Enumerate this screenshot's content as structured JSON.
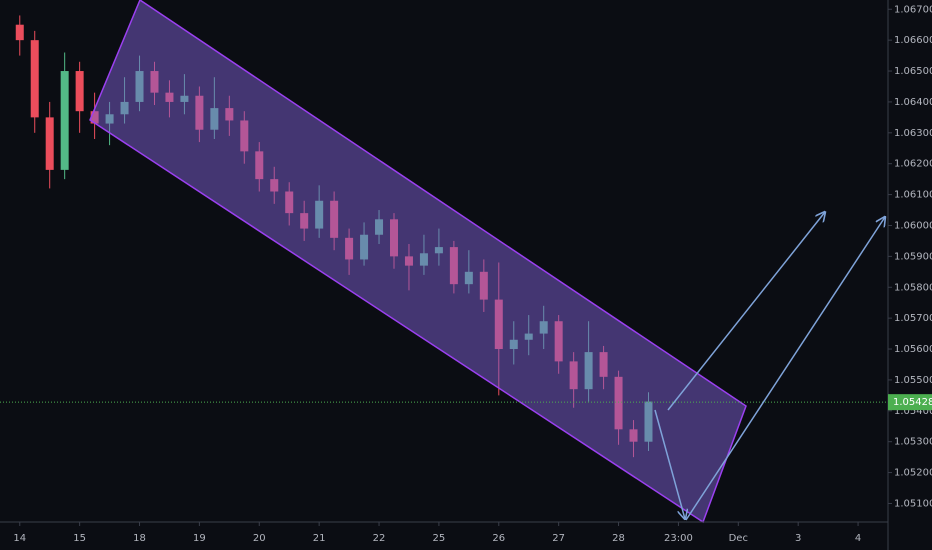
{
  "chart_data": {
    "type": "candlestick",
    "x": [
      0,
      0.25,
      0.5,
      0.75,
      1,
      1.25,
      1.5,
      1.75,
      2,
      2.25,
      2.5,
      2.75,
      3,
      3.25,
      3.5,
      3.75,
      4,
      4.25,
      4.5,
      4.75,
      5,
      5.25,
      5.5,
      5.75,
      6,
      6.25,
      6.5,
      6.75,
      7,
      7.25,
      7.5,
      7.75,
      8,
      8.25,
      8.5,
      8.75,
      9,
      9.25,
      9.5,
      9.75,
      10,
      10.25,
      10.5
    ],
    "open": [
      1.0665,
      1.066,
      1.0635,
      1.0618,
      1.065,
      1.0637,
      1.0633,
      1.0636,
      1.064,
      1.065,
      1.0643,
      1.064,
      1.0642,
      1.0631,
      1.0638,
      1.0634,
      1.0624,
      1.0615,
      1.0611,
      1.0604,
      1.0599,
      1.0608,
      1.0596,
      1.0589,
      1.0597,
      1.0602,
      1.059,
      1.0587,
      1.0591,
      1.0593,
      1.0581,
      1.0585,
      1.0576,
      1.056,
      1.0563,
      1.0565,
      1.0569,
      1.0556,
      1.0547,
      1.0559,
      1.0551,
      1.0534,
      1.053
    ],
    "high": [
      1.0668,
      1.0663,
      1.064,
      1.0656,
      1.0653,
      1.0643,
      1.064,
      1.0648,
      1.0655,
      1.0653,
      1.0647,
      1.0649,
      1.0645,
      1.0648,
      1.0642,
      1.0637,
      1.0627,
      1.0619,
      1.0614,
      1.0608,
      1.0613,
      1.0611,
      1.0599,
      1.0601,
      1.0605,
      1.0604,
      1.0594,
      1.0597,
      1.0599,
      1.0595,
      1.0592,
      1.0589,
      1.0588,
      1.0569,
      1.0571,
      1.0574,
      1.0571,
      1.0559,
      1.0569,
      1.0561,
      1.0553,
      1.0537,
      1.0546
    ],
    "low": [
      1.0655,
      1.063,
      1.0612,
      1.0615,
      1.063,
      1.0628,
      1.0626,
      1.0633,
      1.0637,
      1.0639,
      1.0635,
      1.0636,
      1.0627,
      1.0628,
      1.0629,
      1.062,
      1.0611,
      1.0607,
      1.06,
      1.0595,
      1.0596,
      1.0592,
      1.0584,
      1.0587,
      1.0594,
      1.0586,
      1.0579,
      1.0584,
      1.0587,
      1.0578,
      1.0578,
      1.0572,
      1.0545,
      1.0555,
      1.0558,
      1.056,
      1.0552,
      1.0541,
      1.0543,
      1.0547,
      1.0529,
      1.0525,
      1.0527
    ],
    "close": [
      1.066,
      1.0635,
      1.0618,
      1.065,
      1.0637,
      1.0633,
      1.0636,
      1.064,
      1.065,
      1.0643,
      1.064,
      1.0642,
      1.0631,
      1.0638,
      1.0634,
      1.0624,
      1.0615,
      1.0611,
      1.0604,
      1.0599,
      1.0608,
      1.0596,
      1.0589,
      1.0597,
      1.0602,
      1.059,
      1.0587,
      1.0591,
      1.0593,
      1.0581,
      1.0585,
      1.0576,
      1.056,
      1.0563,
      1.0565,
      1.0569,
      1.0556,
      1.0547,
      1.0559,
      1.0551,
      1.0534,
      1.053,
      1.0543
    ],
    "up_color": "#53b987",
    "down_color": "#eb4d5c",
    "xlim": [
      -0.33,
      14.5
    ],
    "xticks": [
      {
        "value": 0,
        "label": "14"
      },
      {
        "value": 1,
        "label": "15"
      },
      {
        "value": 2,
        "label": "18"
      },
      {
        "value": 3,
        "label": "19"
      },
      {
        "value": 4,
        "label": "20"
      },
      {
        "value": 5,
        "label": "21"
      },
      {
        "value": 6,
        "label": "22"
      },
      {
        "value": 7,
        "label": "25"
      },
      {
        "value": 8,
        "label": "26"
      },
      {
        "value": 9,
        "label": "27"
      },
      {
        "value": 10,
        "label": "28"
      },
      {
        "value": 11,
        "label": "23:00"
      },
      {
        "value": 12,
        "label": "Dec"
      },
      {
        "value": 13,
        "label": "3"
      },
      {
        "value": 14,
        "label": "4"
      }
    ],
    "ylim": [
      1.0504,
      1.0673
    ],
    "yticks": [
      {
        "value": 1.051,
        "label": "1.05100"
      },
      {
        "value": 1.052,
        "label": "1.05200"
      },
      {
        "value": 1.053,
        "label": "1.05300"
      },
      {
        "value": 1.054,
        "label": "1.05400"
      },
      {
        "value": 1.055,
        "label": "1.05500"
      },
      {
        "value": 1.056,
        "label": "1.05600"
      },
      {
        "value": 1.057,
        "label": "1.05700"
      },
      {
        "value": 1.058,
        "label": "1.05800"
      },
      {
        "value": 1.059,
        "label": "1.05900"
      },
      {
        "value": 1.06,
        "label": "1.06000"
      },
      {
        "value": 1.061,
        "label": "1.06100"
      },
      {
        "value": 1.062,
        "label": "1.06200"
      },
      {
        "value": 1.063,
        "label": "1.06300"
      },
      {
        "value": 1.064,
        "label": "1.06400"
      },
      {
        "value": 1.065,
        "label": "1.06500"
      },
      {
        "value": 1.066,
        "label": "1.06600"
      },
      {
        "value": 1.067,
        "label": "1.06700"
      }
    ],
    "last_price": 1.05428,
    "last_price_color": "#4caf50",
    "grid": false
  }
}
